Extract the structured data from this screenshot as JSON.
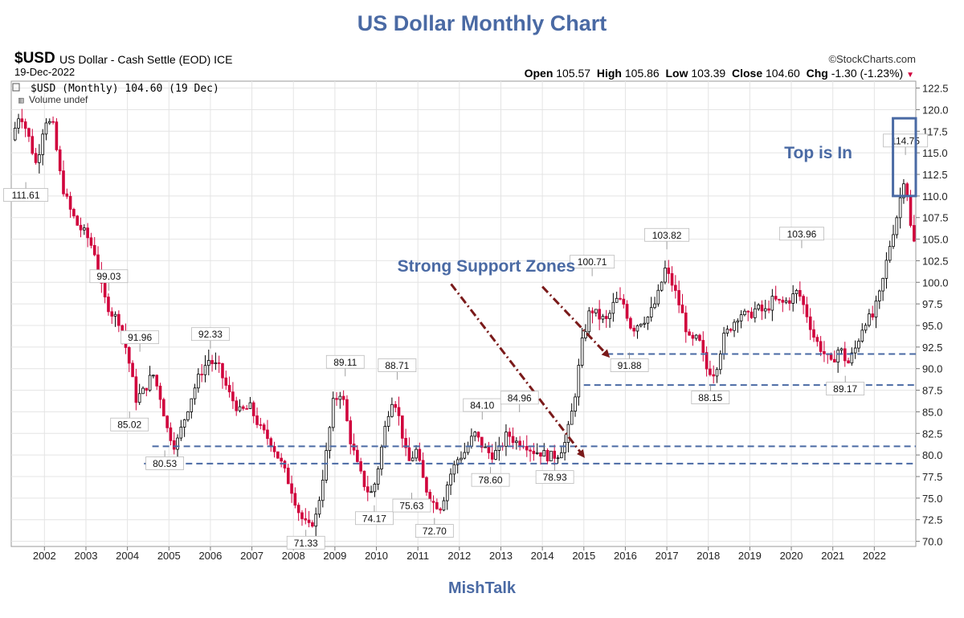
{
  "page": {
    "title": "US Dollar Monthly Chart",
    "footer": "MishTalk"
  },
  "header": {
    "symbol": "$USD",
    "name": "US Dollar - Cash Settle (EOD)  ICE",
    "date": "19-Dec-2022",
    "source": "©StockCharts.com",
    "open_label": "Open",
    "open": "105.57",
    "high_label": "High",
    "high": "105.86",
    "low_label": "Low",
    "low": "103.39",
    "close_label": "Close",
    "close": "104.60",
    "chg_label": "Chg",
    "chg": "-1.30 (-1.23%)",
    "legend_price": "$USD (Monthly) 104.60 (19 Dec)",
    "legend_volume": "Volume undef",
    "colors": {
      "up": "#000000",
      "down": "#d0003c",
      "support": "#4a6aa4",
      "arrow": "#7a1a1a",
      "title": "#4a6aa4"
    }
  },
  "chart_data": {
    "type": "candlestick",
    "title": "US Dollar Monthly Chart",
    "x_ticks": [
      "2002",
      "2003",
      "2004",
      "2005",
      "2006",
      "2007",
      "2008",
      "2009",
      "2010",
      "2011",
      "2012",
      "2013",
      "2014",
      "2015",
      "2016",
      "2017",
      "2018",
      "2019",
      "2020",
      "2021",
      "2022"
    ],
    "x_range": [
      2001.2,
      2023.0
    ],
    "y_ticks": [
      "70.0",
      "72.5",
      "75.0",
      "77.5",
      "80.0",
      "82.5",
      "85.0",
      "87.5",
      "90.0",
      "92.5",
      "95.0",
      "97.5",
      "100.0",
      "102.5",
      "105.0",
      "107.5",
      "110.0",
      "112.5",
      "115.0",
      "117.5",
      "120.0",
      "122.5"
    ],
    "ylim": [
      69.4,
      123.3
    ],
    "y_axis_side": "right",
    "grid": true,
    "price_path": [
      [
        2001.25,
        116.5
      ],
      [
        2001.45,
        119.8
      ],
      [
        2001.65,
        117.0
      ],
      [
        2001.85,
        113.5
      ],
      [
        2002.05,
        119.0
      ],
      [
        2002.25,
        118.0
      ],
      [
        2002.45,
        111.5
      ],
      [
        2002.65,
        108.5
      ],
      [
        2002.85,
        106.5
      ],
      [
        2003.05,
        105.5
      ],
      [
        2003.25,
        103.5
      ],
      [
        2003.45,
        98.5
      ],
      [
        2003.65,
        96.5
      ],
      [
        2003.85,
        95.5
      ],
      [
        2004.05,
        91.5
      ],
      [
        2004.25,
        86.5
      ],
      [
        2004.45,
        87.5
      ],
      [
        2004.65,
        89.5
      ],
      [
        2004.85,
        86.5
      ],
      [
        2005.0,
        83.0
      ],
      [
        2005.2,
        80.9
      ],
      [
        2005.4,
        84.0
      ],
      [
        2005.6,
        87.0
      ],
      [
        2005.8,
        89.5
      ],
      [
        2006.0,
        91.0
      ],
      [
        2006.25,
        90.0
      ],
      [
        2006.5,
        87.0
      ],
      [
        2006.75,
        85.0
      ],
      [
        2007.0,
        85.5
      ],
      [
        2007.25,
        83.0
      ],
      [
        2007.5,
        81.5
      ],
      [
        2007.75,
        79.0
      ],
      [
        2008.0,
        76.0
      ],
      [
        2008.2,
        73.0
      ],
      [
        2008.4,
        71.5
      ],
      [
        2008.6,
        73.0
      ],
      [
        2008.8,
        79.0
      ],
      [
        2009.0,
        86.0
      ],
      [
        2009.2,
        87.5
      ],
      [
        2009.4,
        82.0
      ],
      [
        2009.6,
        78.5
      ],
      [
        2009.8,
        76.0
      ],
      [
        2009.95,
        75.5
      ],
      [
        2010.1,
        79.0
      ],
      [
        2010.3,
        84.5
      ],
      [
        2010.45,
        87.0
      ],
      [
        2010.6,
        84.0
      ],
      [
        2010.8,
        79.0
      ],
      [
        2011.0,
        80.5
      ],
      [
        2011.2,
        76.5
      ],
      [
        2011.4,
        74.5
      ],
      [
        2011.6,
        74.0
      ],
      [
        2011.8,
        77.5
      ],
      [
        2012.0,
        79.5
      ],
      [
        2012.2,
        80.5
      ],
      [
        2012.4,
        82.5
      ],
      [
        2012.6,
        81.0
      ],
      [
        2012.8,
        80.0
      ],
      [
        2013.0,
        80.5
      ],
      [
        2013.2,
        82.5
      ],
      [
        2013.4,
        81.5
      ],
      [
        2013.6,
        81.5
      ],
      [
        2013.8,
        80.5
      ],
      [
        2014.0,
        80.3
      ],
      [
        2014.2,
        79.8
      ],
      [
        2014.4,
        80.0
      ],
      [
        2014.6,
        81.5
      ],
      [
        2014.8,
        86.0
      ],
      [
        2015.0,
        93.0
      ],
      [
        2015.2,
        97.0
      ],
      [
        2015.4,
        96.0
      ],
      [
        2015.6,
        95.5
      ],
      [
        2015.8,
        98.0
      ],
      [
        2016.0,
        97.5
      ],
      [
        2016.2,
        94.5
      ],
      [
        2016.4,
        95.5
      ],
      [
        2016.6,
        96.0
      ],
      [
        2016.8,
        98.0
      ],
      [
        2017.0,
        101.5
      ],
      [
        2017.2,
        99.5
      ],
      [
        2017.4,
        96.5
      ],
      [
        2017.6,
        93.0
      ],
      [
        2017.8,
        93.5
      ],
      [
        2018.0,
        90.0
      ],
      [
        2018.2,
        89.5
      ],
      [
        2018.4,
        93.5
      ],
      [
        2018.6,
        95.0
      ],
      [
        2018.8,
        96.5
      ],
      [
        2019.0,
        96.0
      ],
      [
        2019.2,
        97.0
      ],
      [
        2019.4,
        96.5
      ],
      [
        2019.6,
        98.0
      ],
      [
        2019.8,
        97.5
      ],
      [
        2020.0,
        98.0
      ],
      [
        2020.2,
        99.0
      ],
      [
        2020.4,
        96.5
      ],
      [
        2020.6,
        93.5
      ],
      [
        2020.8,
        92.0
      ],
      [
        2021.0,
        90.5
      ],
      [
        2021.2,
        92.5
      ],
      [
        2021.4,
        90.5
      ],
      [
        2021.6,
        92.5
      ],
      [
        2021.8,
        95.5
      ],
      [
        2022.0,
        96.0
      ],
      [
        2022.2,
        99.0
      ],
      [
        2022.4,
        104.0
      ],
      [
        2022.6,
        108.0
      ],
      [
        2022.75,
        112.0
      ],
      [
        2022.85,
        110.0
      ],
      [
        2022.95,
        104.6
      ]
    ],
    "annotations": [
      {
        "label": "111.61",
        "x": 2001.55,
        "y": 111.61,
        "pos": "below"
      },
      {
        "label": "99.03",
        "x": 2003.55,
        "y": 99.03,
        "pos": "above"
      },
      {
        "label": "91.96",
        "x": 2004.3,
        "y": 91.96,
        "pos": "above"
      },
      {
        "label": "85.02",
        "x": 2004.05,
        "y": 85.02,
        "pos": "below"
      },
      {
        "label": "80.53",
        "x": 2004.9,
        "y": 80.53,
        "pos": "below"
      },
      {
        "label": "92.33",
        "x": 2006.0,
        "y": 92.33,
        "pos": "above"
      },
      {
        "label": "71.33",
        "x": 2008.3,
        "y": 71.33,
        "pos": "below"
      },
      {
        "label": "89.11",
        "x": 2009.25,
        "y": 89.11,
        "pos": "above"
      },
      {
        "label": "74.17",
        "x": 2009.95,
        "y": 74.17,
        "pos": "below"
      },
      {
        "label": "88.71",
        "x": 2010.5,
        "y": 88.71,
        "pos": "above"
      },
      {
        "label": "75.63",
        "x": 2010.85,
        "y": 75.63,
        "pos": "below"
      },
      {
        "label": "72.70",
        "x": 2011.4,
        "y": 72.7,
        "pos": "below"
      },
      {
        "label": "84.10",
        "x": 2012.55,
        "y": 84.1,
        "pos": "above"
      },
      {
        "label": "78.60",
        "x": 2012.75,
        "y": 78.6,
        "pos": "below"
      },
      {
        "label": "84.96",
        "x": 2013.45,
        "y": 84.96,
        "pos": "above"
      },
      {
        "label": "78.93",
        "x": 2014.3,
        "y": 78.93,
        "pos": "below"
      },
      {
        "label": "100.71",
        "x": 2015.2,
        "y": 100.71,
        "pos": "above"
      },
      {
        "label": "91.88",
        "x": 2016.1,
        "y": 91.88,
        "pos": "below"
      },
      {
        "label": "103.82",
        "x": 2017.0,
        "y": 103.82,
        "pos": "above"
      },
      {
        "label": "88.15",
        "x": 2018.05,
        "y": 88.15,
        "pos": "below"
      },
      {
        "label": "103.96",
        "x": 2020.25,
        "y": 103.96,
        "pos": "above"
      },
      {
        "label": "89.17",
        "x": 2021.3,
        "y": 89.17,
        "pos": "below"
      },
      {
        "label": "114.75",
        "x": 2022.75,
        "y": 114.75,
        "pos": "above"
      }
    ],
    "support_lines": [
      {
        "y": 81.0,
        "x_from": 2004.6,
        "x_to": 2023.0
      },
      {
        "y": 79.0,
        "x_from": 2004.4,
        "x_to": 2023.0
      },
      {
        "y": 91.7,
        "x_from": 2015.55,
        "x_to": 2023.0
      },
      {
        "y": 88.1,
        "x_from": 2015.0,
        "x_to": 2023.0
      }
    ],
    "callouts": [
      {
        "text": "Strong Support Zones",
        "x": 2012.65,
        "y": 101.9
      },
      {
        "text": "Top is In",
        "x": 2020.65,
        "y": 115.0
      }
    ],
    "arrows": [
      {
        "from": [
          2011.8,
          99.8
        ],
        "to": [
          2015.0,
          79.8
        ]
      },
      {
        "from": [
          2014.0,
          99.5
        ],
        "to": [
          2015.6,
          91.4
        ]
      }
    ],
    "highlight_box": {
      "x_from": 2022.45,
      "x_to": 2023.0,
      "y_from": 110.0,
      "y_to": 119.0
    }
  }
}
